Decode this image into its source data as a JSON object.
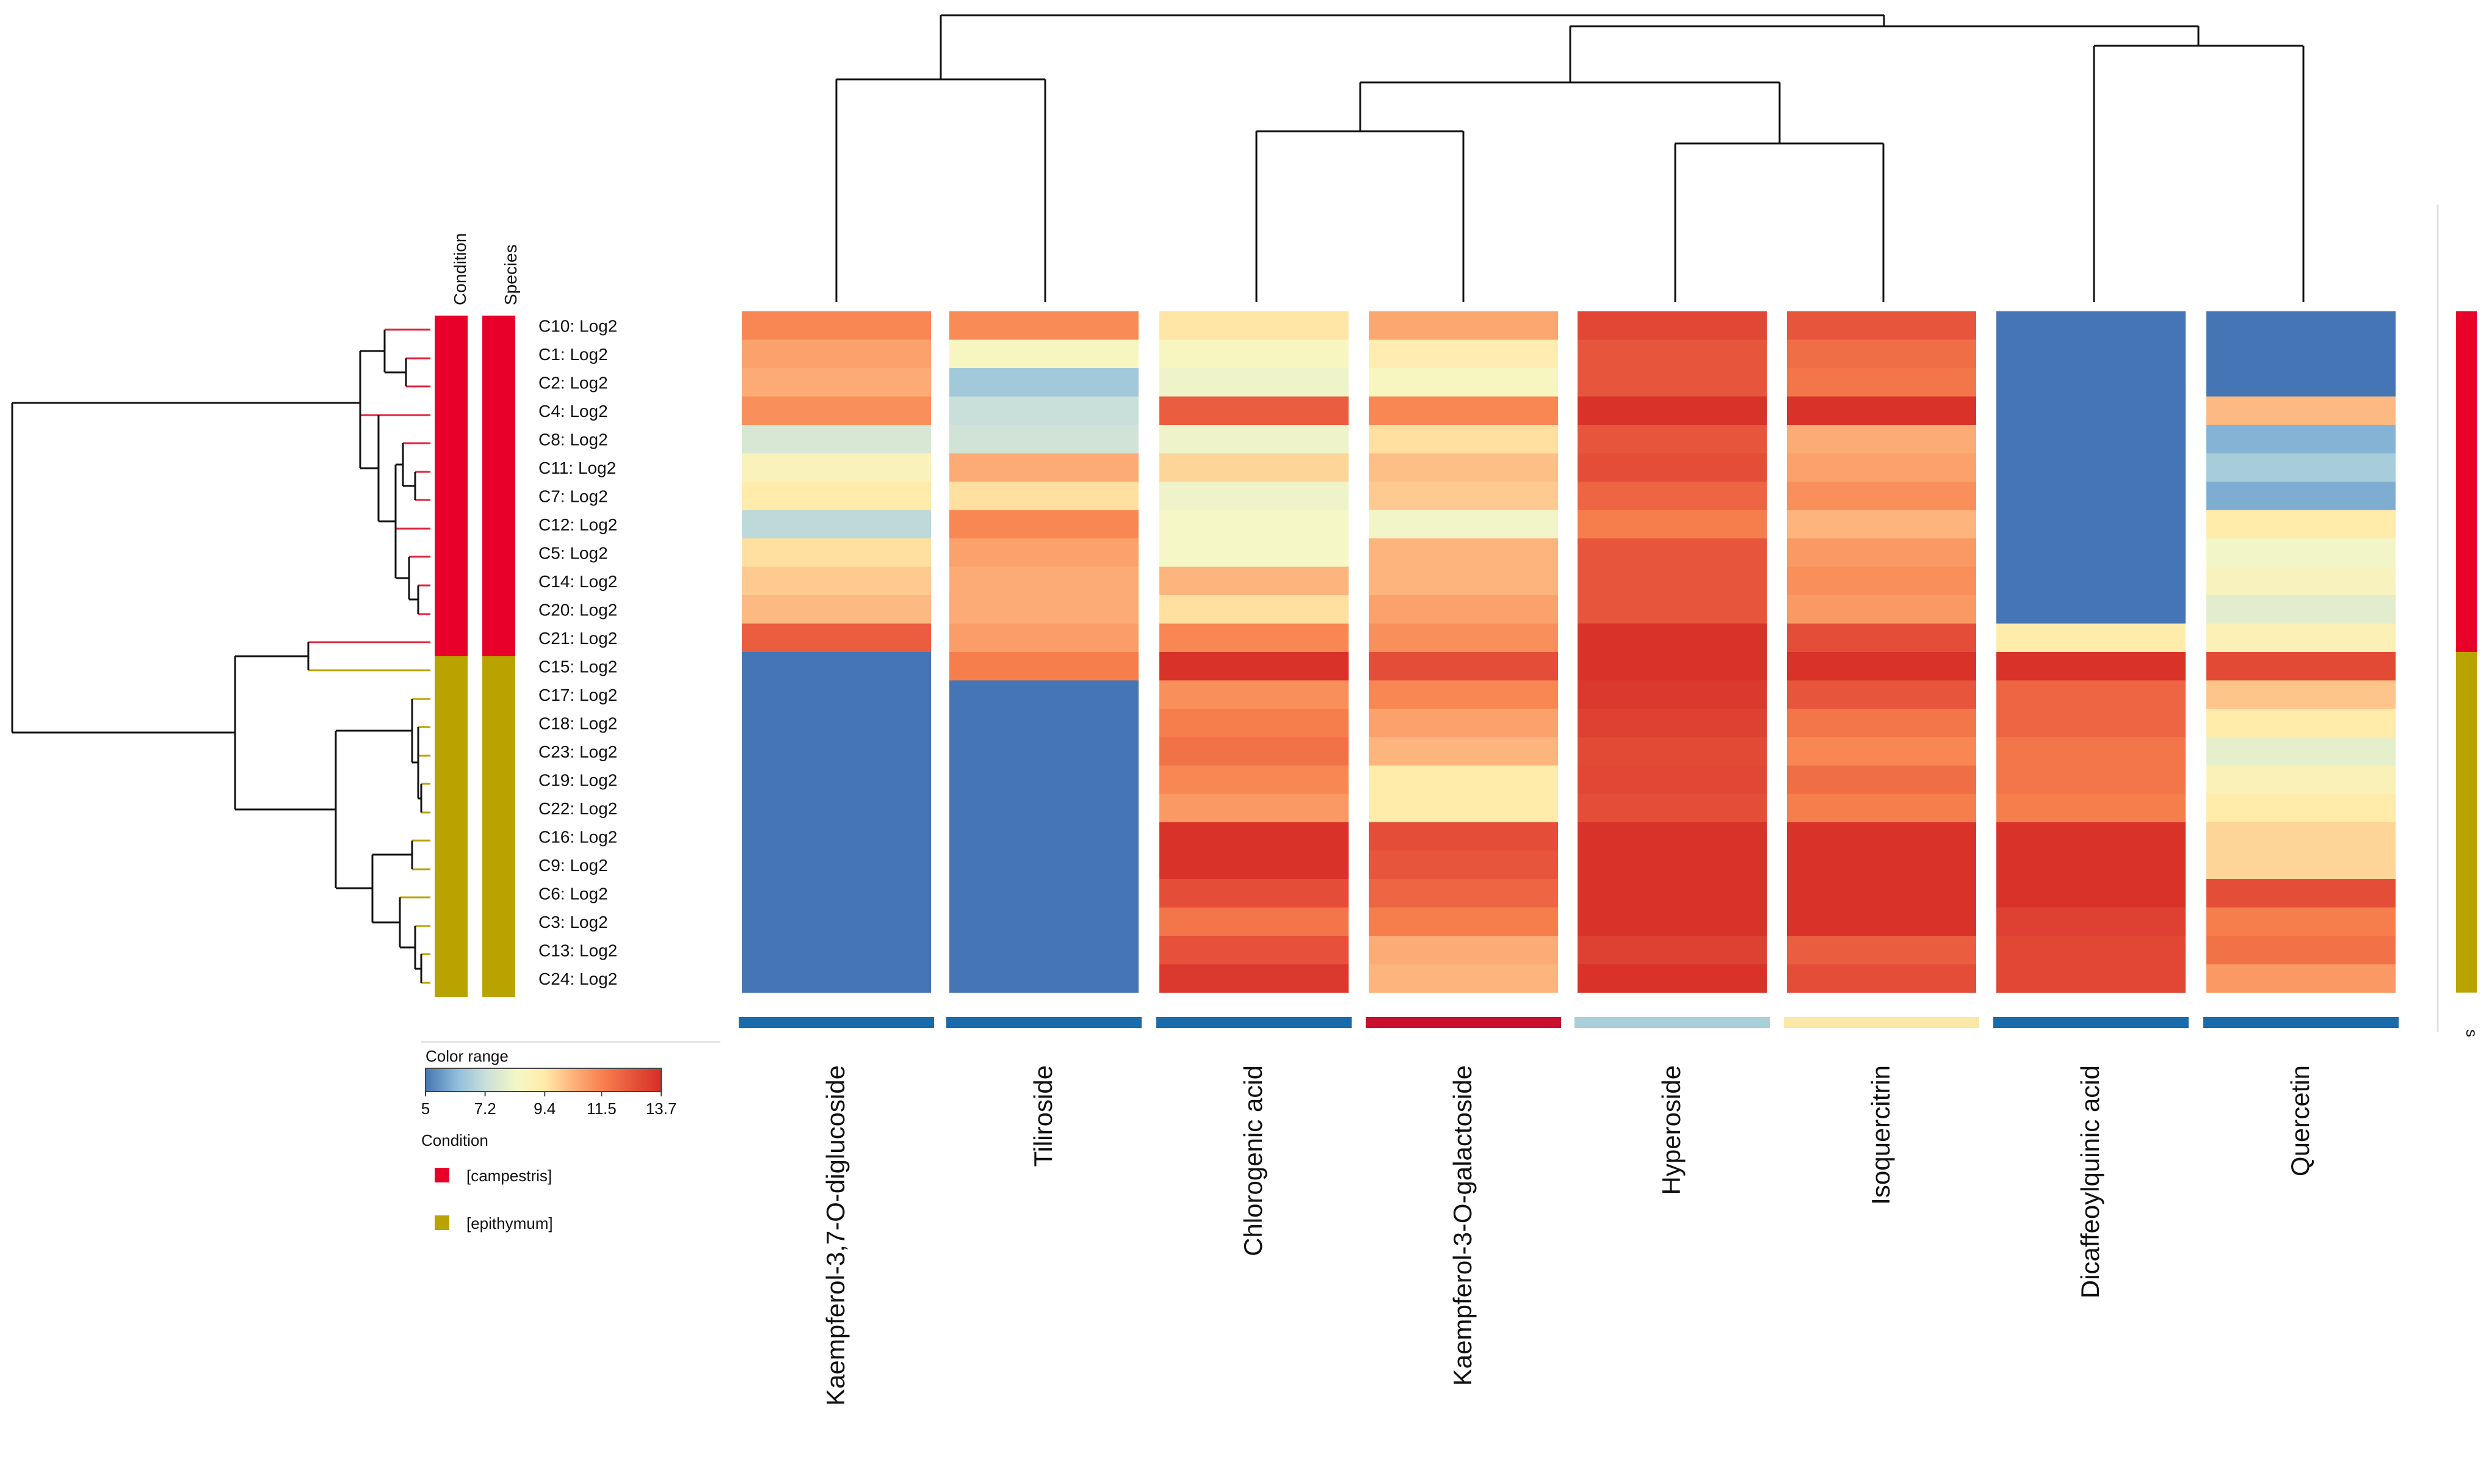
{
  "chart_data": {
    "type": "heatmap",
    "title": "",
    "value_scale": {
      "min": 5,
      "max": 13.7
    },
    "colorscale": [
      {
        "v": 5,
        "color": "#4575b4"
      },
      {
        "v": 6.2,
        "color": "#91bfdb"
      },
      {
        "v": 7.2,
        "color": "#c9dfd9"
      },
      {
        "v": 8.4,
        "color": "#f5f7c6"
      },
      {
        "v": 9.4,
        "color": "#ffebaa"
      },
      {
        "v": 10.4,
        "color": "#fdb47d"
      },
      {
        "v": 11.5,
        "color": "#f8824f"
      },
      {
        "v": 12.6,
        "color": "#e7553c"
      },
      {
        "v": 13.7,
        "color": "#d62e27"
      }
    ],
    "rows": [
      "C10: Log2",
      "C1: Log2",
      "C2: Log2",
      "C4: Log2",
      "C8: Log2",
      "C11: Log2",
      "C7: Log2",
      "C12: Log2",
      "C5: Log2",
      "C14: Log2",
      "C20: Log2",
      "C21: Log2",
      "C15: Log2",
      "C17: Log2",
      "C18: Log2",
      "C23: Log2",
      "C19: Log2",
      "C22: Log2",
      "C16: Log2",
      "C9: Log2",
      "C6: Log2",
      "C3: Log2",
      "C13: Log2",
      "C24: Log2"
    ],
    "row_conditions": [
      "campestris",
      "campestris",
      "campestris",
      "campestris",
      "campestris",
      "campestris",
      "campestris",
      "campestris",
      "campestris",
      "campestris",
      "campestris",
      "campestris",
      "epithymum",
      "epithymum",
      "epithymum",
      "epithymum",
      "epithymum",
      "epithymum",
      "epithymum",
      "epithymum",
      "epithymum",
      "epithymum",
      "epithymum",
      "epithymum"
    ],
    "row_species": [
      "campestris",
      "campestris",
      "campestris",
      "campestris",
      "campestris",
      "campestris",
      "campestris",
      "campestris",
      "campestris",
      "campestris",
      "campestris",
      "campestris",
      "epithymum",
      "epithymum",
      "epithymum",
      "epithymum",
      "epithymum",
      "epithymum",
      "epithymum",
      "epithymum",
      "epithymum",
      "epithymum",
      "epithymum",
      "epithymum"
    ],
    "columns": [
      "Kaempferol-3,7-O-diglucoside",
      "Tiliroside",
      "Chlorogenic acid",
      "Kaempferol-3-O-galactoside",
      "Hyperoside",
      "Isoquercitrin",
      "Dicaffeoylquinic acid",
      "Quercetin"
    ],
    "column_markers": [
      "#1a6bab",
      "#1a6bab",
      "#1a6bab",
      "#c8102e",
      "#a9cfd8",
      "#fbe7a8",
      "#1a6bab",
      "#1a6bab"
    ],
    "values": [
      [
        11.4,
        11.3,
        9.5,
        10.7,
        13.0,
        12.6,
        5.0,
        5.0
      ],
      [
        10.8,
        8.6,
        8.6,
        9.2,
        12.6,
        12.0,
        5.0,
        5.0
      ],
      [
        10.6,
        6.5,
        8.2,
        8.6,
        12.6,
        11.8,
        5.0,
        5.0
      ],
      [
        11.2,
        7.2,
        12.4,
        11.4,
        13.6,
        13.6,
        5.0,
        10.3
      ],
      [
        7.6,
        7.4,
        8.2,
        9.6,
        12.6,
        10.6,
        5.0,
        6.0
      ],
      [
        8.8,
        10.6,
        9.8,
        10.2,
        12.8,
        10.8,
        5.0,
        6.6
      ],
      [
        9.4,
        9.6,
        8.2,
        10.0,
        12.2,
        11.2,
        5.0,
        5.9
      ],
      [
        7.0,
        11.4,
        8.4,
        8.3,
        11.6,
        10.4,
        5.0,
        9.4
      ],
      [
        9.6,
        10.8,
        8.4,
        10.4,
        12.6,
        11.0,
        5.0,
        8.3
      ],
      [
        10.0,
        10.6,
        10.4,
        10.4,
        12.6,
        11.2,
        5.0,
        8.7
      ],
      [
        10.3,
        10.6,
        9.6,
        10.8,
        12.6,
        11.0,
        5.0,
        7.9
      ],
      [
        12.4,
        10.9,
        11.4,
        11.2,
        13.6,
        12.8,
        9.4,
        9.0
      ],
      [
        5.0,
        11.6,
        13.6,
        12.8,
        13.6,
        13.6,
        13.6,
        12.9
      ],
      [
        5.0,
        5.0,
        11.2,
        11.4,
        13.4,
        12.6,
        12.2,
        10.1
      ],
      [
        5.0,
        5.0,
        11.6,
        10.8,
        13.2,
        11.8,
        12.2,
        9.4
      ],
      [
        5.0,
        5.0,
        11.9,
        10.4,
        12.9,
        11.4,
        11.8,
        8.0
      ],
      [
        5.0,
        5.0,
        11.4,
        9.4,
        13.0,
        12.0,
        11.8,
        8.9
      ],
      [
        5.0,
        5.0,
        11.0,
        9.4,
        12.8,
        11.6,
        11.6,
        9.4
      ],
      [
        5.0,
        5.0,
        13.6,
        12.8,
        13.6,
        13.6,
        13.6,
        9.8
      ],
      [
        5.0,
        5.0,
        13.6,
        12.6,
        13.6,
        13.6,
        13.6,
        9.8
      ],
      [
        5.0,
        5.0,
        12.8,
        12.2,
        13.6,
        13.6,
        13.6,
        12.8
      ],
      [
        5.0,
        5.0,
        11.8,
        11.6,
        13.6,
        13.6,
        13.2,
        11.6
      ],
      [
        5.0,
        5.0,
        12.7,
        10.6,
        13.2,
        12.4,
        13.0,
        11.9
      ],
      [
        5.0,
        5.0,
        13.4,
        10.4,
        13.6,
        12.8,
        13.0,
        11.0
      ]
    ],
    "row_track_labels": [
      "Condition",
      "Species"
    ],
    "legend": {
      "title": "Color range",
      "ticks": [
        "5",
        "7.2",
        "9.4",
        "11.5",
        "13.7"
      ],
      "group_title": "Condition",
      "groups": [
        {
          "label": "[campestris]",
          "color": "#e8002a"
        },
        {
          "label": "[epithymum]",
          "color": "#b8a300"
        }
      ]
    },
    "side_strip_label": "s"
  }
}
